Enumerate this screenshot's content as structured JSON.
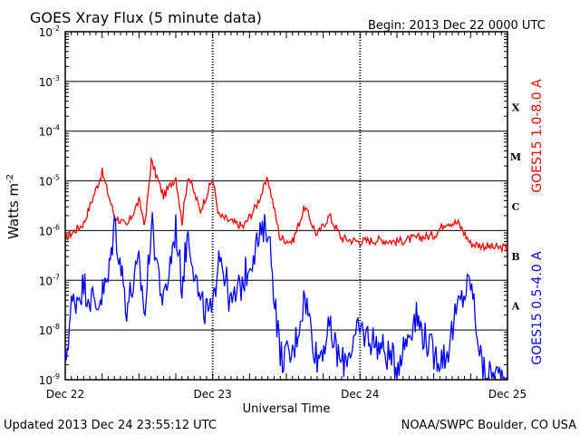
{
  "header": {
    "title": "GOES Xray Flux (5 minute data)",
    "begin": "Begin:  2013 Dec 22 0000 UTC"
  },
  "footer": {
    "updated": "Updated 2013 Dec 24 23:55:12 UTC",
    "credit": "NOAA/SWPC Boulder, CO USA"
  },
  "chart_data": {
    "type": "line",
    "title": "GOES Xray Flux (5 minute data)",
    "xlabel": "Universal Time",
    "ylabel": "Watts m",
    "ylabel_superscript": "-2",
    "yscale": "log",
    "ylim": [
      1e-09,
      0.01
    ],
    "xlim": [
      "2013-12-22 00:00",
      "2013-12-25 00:00"
    ],
    "x_ticks": [
      "Dec 22",
      "Dec 23",
      "Dec 24",
      "Dec 25"
    ],
    "y_ticks": [
      {
        "base": "10",
        "exp": "-9"
      },
      {
        "base": "10",
        "exp": "-8"
      },
      {
        "base": "10",
        "exp": "-7"
      },
      {
        "base": "10",
        "exp": "-6"
      },
      {
        "base": "10",
        "exp": "-5"
      },
      {
        "base": "10",
        "exp": "-4"
      },
      {
        "base": "10",
        "exp": "-3"
      },
      {
        "base": "10",
        "exp": "-2"
      }
    ],
    "flare_classes": [
      {
        "label": "A",
        "value": 1e-08
      },
      {
        "label": "B",
        "value": 1e-07
      },
      {
        "label": "C",
        "value": 1e-06
      },
      {
        "label": "M",
        "value": 1e-05
      },
      {
        "label": "X",
        "value": 0.0001
      }
    ],
    "grid": true,
    "colors": {
      "long": "#ff0000",
      "short": "#0000ff",
      "grid": "#000000"
    },
    "series": [
      {
        "name": "GOES15 1.0-8.0 A",
        "color": "#ff0000",
        "x": [
          "2013-12-22 00:00",
          "2013-12-22 03:00",
          "2013-12-22 06:00",
          "2013-12-22 08:00",
          "2013-12-22 10:00",
          "2013-12-22 12:00",
          "2013-12-22 13:00",
          "2013-12-22 14:00",
          "2013-12-22 16:00",
          "2013-12-22 18:00",
          "2013-12-22 19:00",
          "2013-12-22 20:00",
          "2013-12-22 22:00",
          "2013-12-23 00:00",
          "2013-12-23 01:00",
          "2013-12-23 03:00",
          "2013-12-23 05:00",
          "2013-12-23 07:00",
          "2013-12-23 09:00",
          "2013-12-23 11:00",
          "2013-12-23 13:00",
          "2013-12-23 15:00",
          "2013-12-23 17:00",
          "2013-12-23 19:00",
          "2013-12-23 21:00",
          "2013-12-24 00:00",
          "2013-12-24 03:00",
          "2013-12-24 06:00",
          "2013-12-24 09:00",
          "2013-12-24 12:00",
          "2013-12-24 14:00",
          "2013-12-24 16:00",
          "2013-12-24 18:00",
          "2013-12-24 20:00",
          "2013-12-24 22:00",
          "2013-12-25 00:00"
        ],
        "values": [
          7e-07,
          1.4e-06,
          1.5e-05,
          2e-06,
          1.2e-06,
          4e-06,
          1.3e-06,
          2.5e-05,
          5e-06,
          1.2e-05,
          1.5e-06,
          1.3e-05,
          2.5e-06,
          1.1e-05,
          2e-06,
          1.5e-06,
          1.2e-06,
          3e-06,
          1.1e-05,
          7e-07,
          6e-07,
          3e-06,
          8e-07,
          2e-06,
          7e-07,
          6e-07,
          6.5e-07,
          6e-07,
          7e-07,
          8e-07,
          1.5e-06,
          1.4e-06,
          5.5e-07,
          5e-07,
          4.5e-07,
          4.5e-07
        ]
      },
      {
        "name": "GOES15 0.5-4.0 A",
        "color": "#0000ff",
        "x": [
          "2013-12-22 00:00",
          "2013-12-22 01:00",
          "2013-12-22 03:00",
          "2013-12-22 05:00",
          "2013-12-22 07:00",
          "2013-12-22 08:00",
          "2013-12-22 10:00",
          "2013-12-22 12:00",
          "2013-12-22 13:00",
          "2013-12-22 14:00",
          "2013-12-22 16:00",
          "2013-12-22 18:00",
          "2013-12-22 19:00",
          "2013-12-22 20:00",
          "2013-12-22 22:00",
          "2013-12-23 00:00",
          "2013-12-23 01:00",
          "2013-12-23 03:00",
          "2013-12-23 05:00",
          "2013-12-23 07:00",
          "2013-12-23 09:00",
          "2013-12-23 11:00",
          "2013-12-23 13:00",
          "2013-12-23 15:00",
          "2013-12-23 17:00",
          "2013-12-23 19:00",
          "2013-12-23 21:00",
          "2013-12-24 00:00",
          "2013-12-24 03:00",
          "2013-12-24 06:00",
          "2013-12-24 09:00",
          "2013-12-24 12:00",
          "2013-12-24 14:00",
          "2013-12-24 16:00",
          "2013-12-24 18:00",
          "2013-12-24 20:00",
          "2013-12-24 22:00",
          "2013-12-25 00:00"
        ],
        "values": [
          2e-09,
          3e-08,
          8e-08,
          3e-08,
          1e-07,
          1.5e-06,
          3e-08,
          2e-07,
          2e-08,
          1.5e-06,
          3e-08,
          1.2e-06,
          8e-08,
          1e-06,
          3e-08,
          2e-08,
          5e-07,
          3e-08,
          1e-07,
          5e-07,
          1.3e-06,
          3e-09,
          3e-09,
          5e-08,
          2.5e-09,
          1e-08,
          2e-09,
          1e-08,
          5e-09,
          2e-09,
          2e-08,
          3e-09,
          3e-09,
          3e-08,
          1e-07,
          1.3e-09,
          1.2e-09,
          1.2e-09
        ]
      }
    ]
  }
}
